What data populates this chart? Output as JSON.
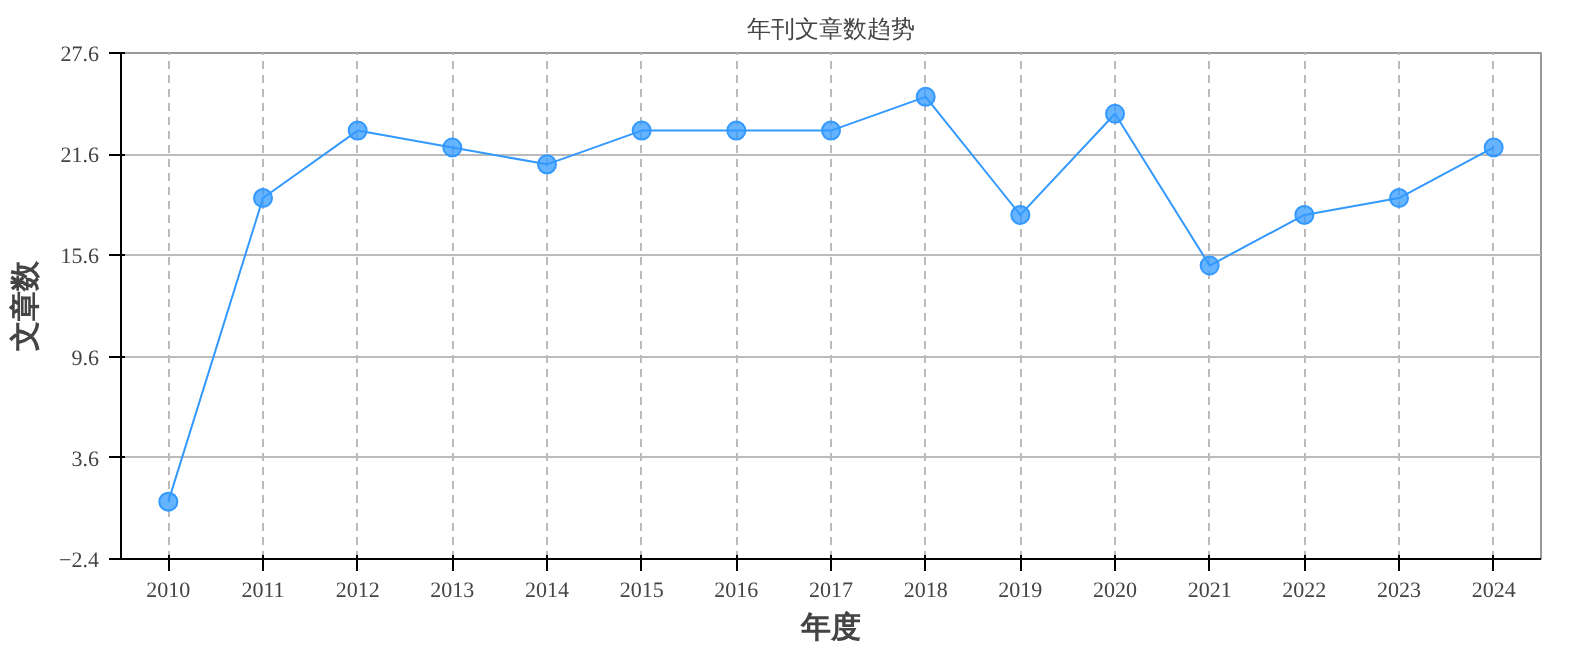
{
  "chart_data": {
    "type": "line",
    "title": "年刊文章数趋势",
    "xlabel": "年度",
    "ylabel": "文章数",
    "categories": [
      "2010",
      "2011",
      "2012",
      "2013",
      "2014",
      "2015",
      "2016",
      "2017",
      "2018",
      "2019",
      "2020",
      "2021",
      "2022",
      "2023",
      "2024"
    ],
    "series": [
      {
        "color": "#3399ff",
        "values": [
          1,
          19,
          23,
          22,
          21,
          23,
          23,
          23,
          25,
          18,
          24,
          15,
          18,
          19,
          22
        ]
      }
    ],
    "ylim": [
      -2.4,
      27.6
    ],
    "yticks": [
      -2.4,
      3.6,
      9.6,
      15.6,
      21.6,
      27.6
    ],
    "grid": true,
    "marker": "circle",
    "line_style": "solid"
  }
}
